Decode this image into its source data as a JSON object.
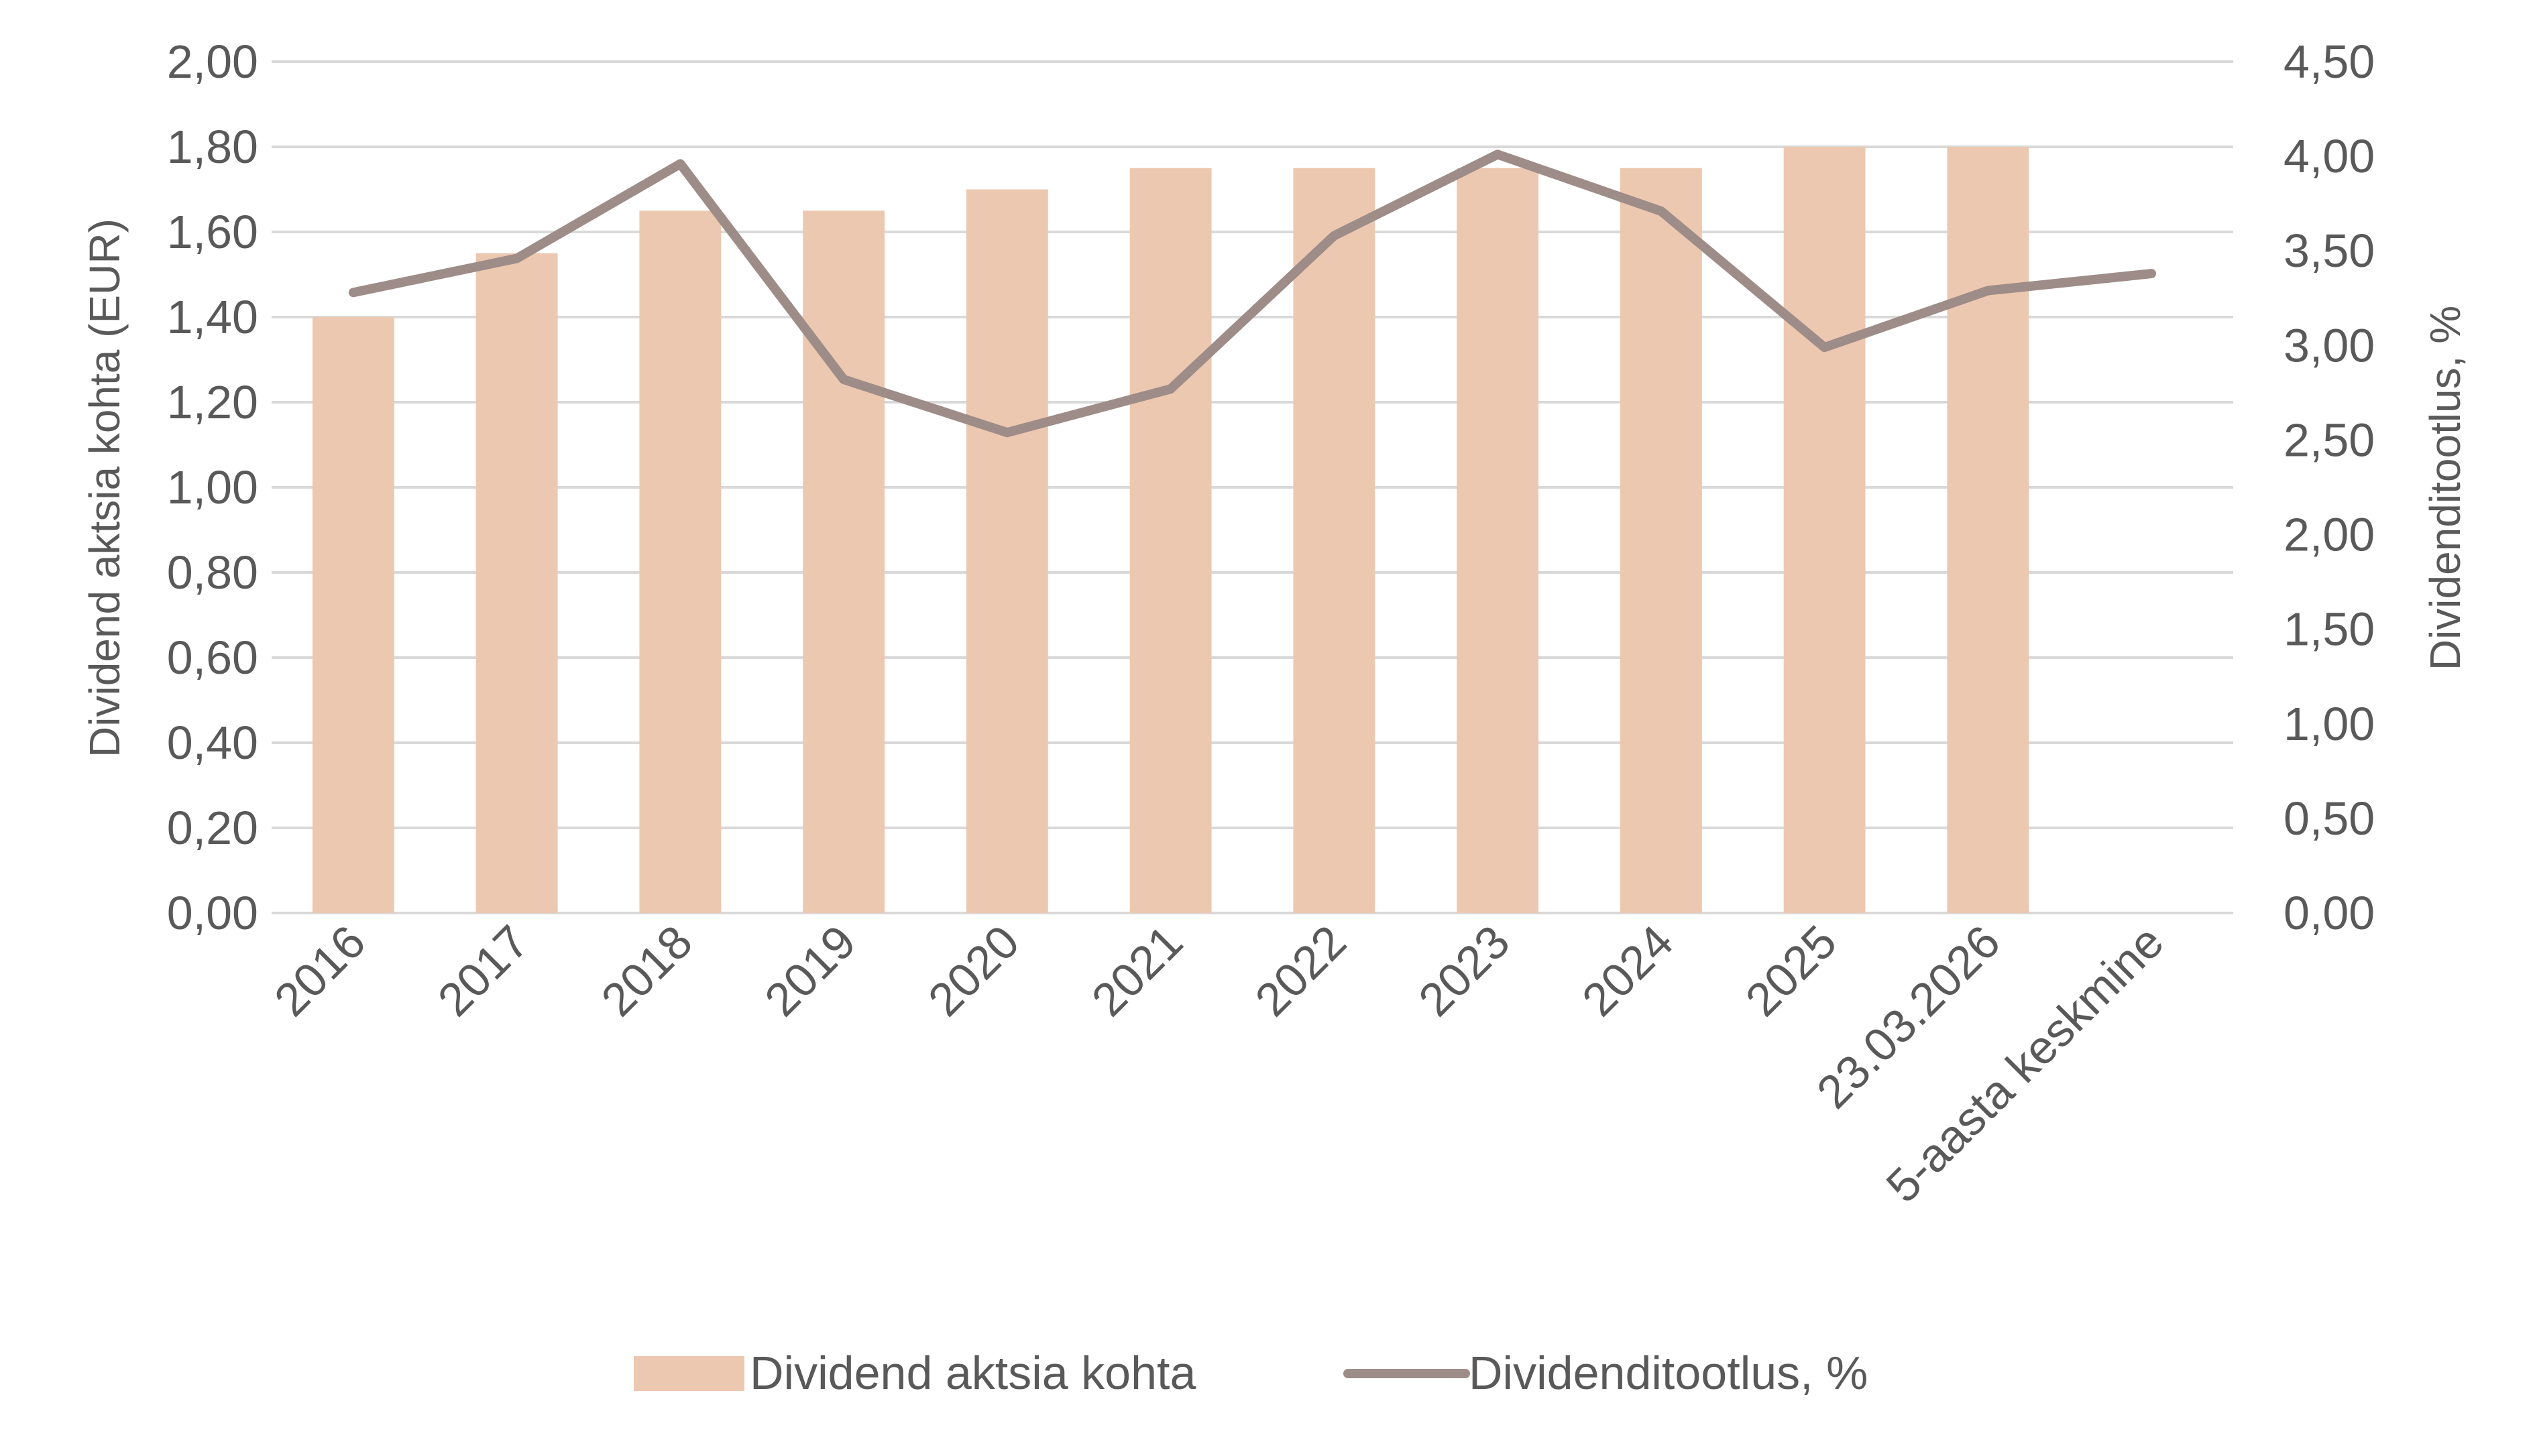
{
  "chart_data": {
    "type": "bar",
    "title": "",
    "categories": [
      "2016",
      "2017",
      "2018",
      "2019",
      "2020",
      "2021",
      "2022",
      "2023",
      "2024",
      "2025",
      "23.03.2026",
      "5-aasta keskmine"
    ],
    "series": [
      {
        "name": "Dividend aktsia kohta",
        "kind": "bar",
        "axis": "left",
        "values": [
          1.4,
          1.55,
          1.65,
          1.65,
          1.7,
          1.75,
          1.75,
          1.75,
          1.75,
          1.8,
          1.8,
          null
        ],
        "color": "#ECC8B0"
      },
      {
        "name": "Dividenditootlus, %",
        "kind": "line",
        "axis": "right",
        "values": [
          3.28,
          3.46,
          3.96,
          2.82,
          2.54,
          2.77,
          3.58,
          4.01,
          3.71,
          2.99,
          3.29,
          3.38
        ],
        "color": "#9E8C88"
      }
    ],
    "y_left": {
      "label": "Dividend aktsia kohta (EUR)",
      "ylim": [
        0,
        2.0
      ],
      "ticks": [
        "0,00",
        "0,20",
        "0,40",
        "0,60",
        "0,80",
        "1,00",
        "1,20",
        "1,40",
        "1,60",
        "1,80",
        "2,00"
      ]
    },
    "y_right": {
      "label": "Dividenditootlus, %",
      "ylim": [
        0,
        4.5
      ],
      "ticks": [
        "0,00",
        "0,50",
        "1,00",
        "1,50",
        "2,00",
        "2,50",
        "3,00",
        "3,50",
        "4,00",
        "4,50"
      ]
    },
    "grid": true,
    "legend": "bottom-center",
    "legend_items": [
      "Dividend aktsia kohta",
      "Dividenditootlus, %"
    ],
    "gridColor": "#D9D9D9",
    "textColor": "#595959"
  }
}
